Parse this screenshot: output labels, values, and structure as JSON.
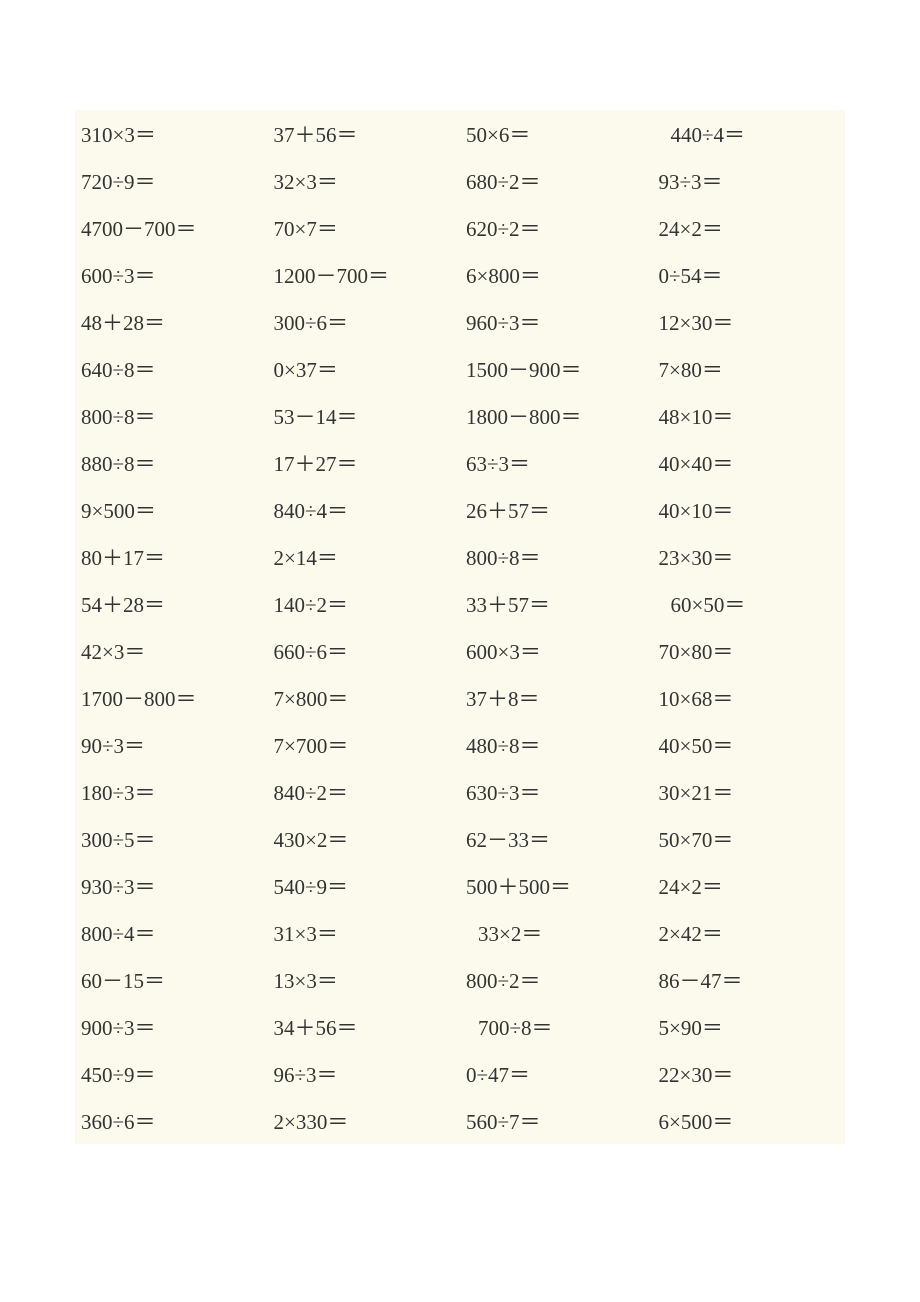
{
  "worksheet": {
    "type": "table",
    "background_color": "#ffffff",
    "cell_background_color": "#fcfaed",
    "text_color": "#333333",
    "fontsize": 21,
    "columns": 4,
    "rows": 22,
    "problems": [
      [
        "310×3＝",
        "37＋56＝",
        "50×6＝",
        "440÷4＝"
      ],
      [
        "720÷9＝",
        "32×3＝",
        "680÷2＝",
        "93÷3＝"
      ],
      [
        "4700－700＝",
        "70×7＝",
        "620÷2＝",
        "24×2＝"
      ],
      [
        "600÷3＝",
        "1200－700＝",
        "6×800＝",
        "0÷54＝"
      ],
      [
        "48＋28＝",
        "300÷6＝",
        "960÷3＝",
        "12×30＝"
      ],
      [
        "640÷8＝",
        "0×37＝",
        "1500－900＝",
        "7×80＝"
      ],
      [
        "800÷8＝",
        "53－14＝",
        "1800－800＝",
        "48×10＝"
      ],
      [
        "880÷8＝",
        "17＋27＝",
        "63÷3＝",
        "40×40＝"
      ],
      [
        "9×500＝",
        "840÷4＝",
        "26＋57＝",
        "40×10＝"
      ],
      [
        "80＋17＝",
        "2×14＝",
        "800÷8＝",
        "23×30＝"
      ],
      [
        "54＋28＝",
        "140÷2＝",
        "33＋57＝",
        "60×50＝"
      ],
      [
        "42×3＝",
        "660÷6＝",
        "600×3＝",
        "70×80＝"
      ],
      [
        "1700－800＝",
        "7×800＝",
        "37＋8＝",
        "10×68＝"
      ],
      [
        "90÷3＝",
        "7×700＝",
        "480÷8＝",
        "40×50＝"
      ],
      [
        "180÷3＝",
        "840÷2＝",
        "630÷3＝",
        "30×21＝"
      ],
      [
        "300÷5＝",
        "430×2＝",
        "62－33＝",
        "50×70＝"
      ],
      [
        "930÷3＝",
        "540÷9＝",
        "500＋500＝",
        "24×2＝"
      ],
      [
        "800÷4＝",
        "31×3＝",
        "33×2＝",
        "2×42＝"
      ],
      [
        "60－15＝",
        "13×3＝",
        "800÷2＝",
        "86－47＝"
      ],
      [
        "900÷3＝",
        "34＋56＝",
        "700÷8＝",
        "5×90＝"
      ],
      [
        "450÷9＝",
        "96÷3＝",
        "0÷47＝",
        "22×30＝"
      ],
      [
        "360÷6＝",
        "2×330＝",
        "560÷7＝",
        "6×500＝"
      ]
    ],
    "indented_cells": [
      [
        0,
        3
      ],
      [
        10,
        3
      ],
      [
        17,
        2
      ],
      [
        19,
        2
      ]
    ]
  }
}
